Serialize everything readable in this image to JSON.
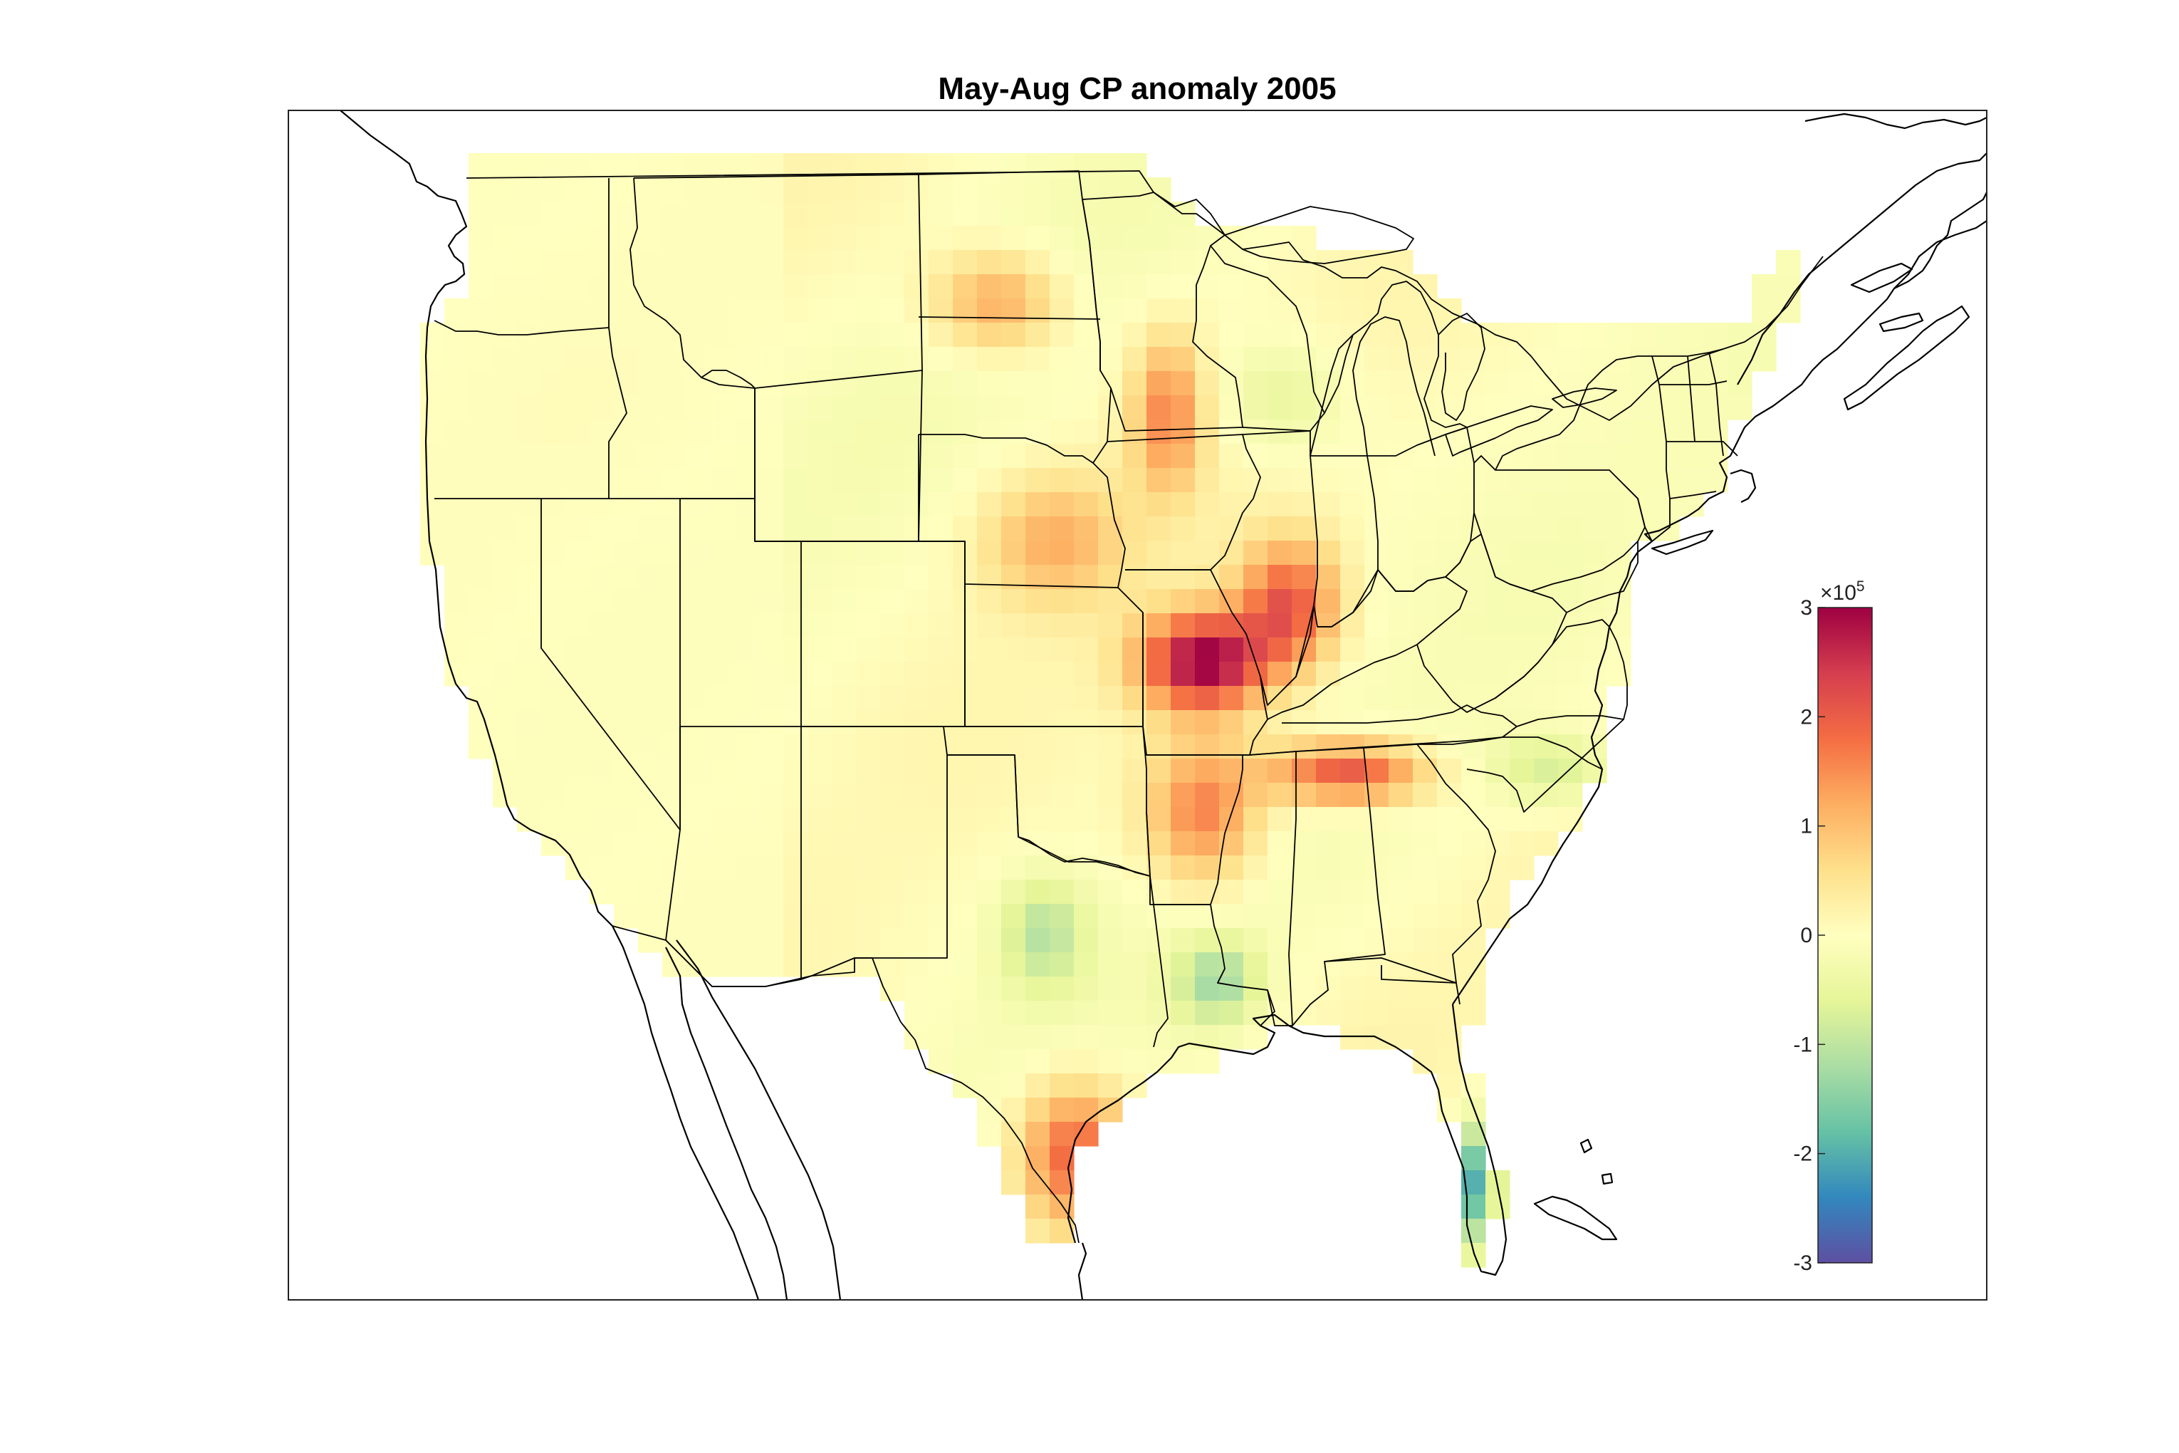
{
  "figure": {
    "title": "May-Aug CP anomaly 2005"
  },
  "colorbar": {
    "colormap": "spectral",
    "range": [
      -3,
      3
    ],
    "ticks": [
      "3",
      "2",
      "1",
      "0",
      "-1",
      "-2",
      "-3"
    ],
    "exponent_base": "×10",
    "exponent_power": "5",
    "colors": [
      "#5e4fa2",
      "#3288bd",
      "#66c2a5",
      "#abdda4",
      "#e6f598",
      "#ffffbf",
      "#fee08b",
      "#fdae61",
      "#f46d43",
      "#d53e4f",
      "#9e0142"
    ]
  },
  "map_data": {
    "projection": "lambert-conic",
    "region": "contiguous United States",
    "grid_resolution_deg": 1,
    "anomaly_hotspots": [
      {
        "region": "Missouri",
        "value": 3.0
      },
      {
        "region": "Western Tennessee",
        "value": 2.2
      },
      {
        "region": "Southern Illinois",
        "value": 2.0
      },
      {
        "region": "Arkansas",
        "value": 1.7
      },
      {
        "region": "South Texas",
        "value": 2.0
      },
      {
        "region": "Western North Dakota",
        "value": 1.3
      },
      {
        "region": "Eastern Nebraska / Kansas",
        "value": 1.1
      },
      {
        "region": "Eastern Minnesota",
        "value": 1.5
      },
      {
        "region": "Southern Florida",
        "value": -2.0
      },
      {
        "region": "Louisiana",
        "value": -1.2
      },
      {
        "region": "Central Texas",
        "value": -1.0
      },
      {
        "region": "Eastern North Carolina",
        "value": -0.8
      },
      {
        "region": "Wisconsin",
        "value": -0.6
      }
    ]
  }
}
